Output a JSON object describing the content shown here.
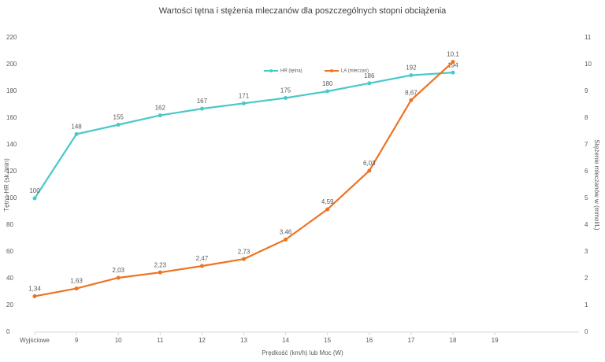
{
  "chart_data": {
    "type": "line",
    "title": "Wartości tętna i stężenia mleczanów dla poszczególnych stopni obciążenia",
    "x_label": "Prędkość (km/h) lub Moc (W)",
    "y_label": "Tętno-HR (sk./min)",
    "y2_label": "Stężenie mleczanów w (mmol/L)",
    "categories": [
      "Wyjściowe",
      "9",
      "10",
      "11",
      "12",
      "13",
      "14",
      "15",
      "16",
      "17",
      "18",
      "19"
    ],
    "series": [
      {
        "name": "HR (tętna)",
        "color": "#4bc8c8",
        "values": [
          100,
          148,
          155,
          162,
          167,
          171,
          175,
          180,
          186,
          192,
          194,
          null
        ]
      },
      {
        "name": "LA (mleczan)",
        "color": "#ee7320",
        "axis": "y2",
        "values": [
          1.34,
          1.63,
          2.03,
          2.23,
          2.47,
          2.73,
          3.46,
          4.59,
          6.03,
          8.67,
          10.1,
          null
        ],
        "value_labels": [
          "1,34",
          "1,63",
          "2,03",
          "2,23",
          "2,47",
          "2,73",
          "3,46",
          "4,59",
          "6,03",
          "8,67",
          "10,1",
          null
        ]
      }
    ],
    "ylim": [
      0,
      220
    ],
    "yticks": [
      0,
      20,
      40,
      60,
      80,
      100,
      120,
      140,
      160,
      180,
      200,
      220
    ],
    "y2lim": [
      0,
      11
    ],
    "y2ticks": [
      0,
      1,
      2,
      3,
      4,
      5,
      6,
      7,
      8,
      9,
      10,
      11
    ],
    "legend": "top"
  }
}
